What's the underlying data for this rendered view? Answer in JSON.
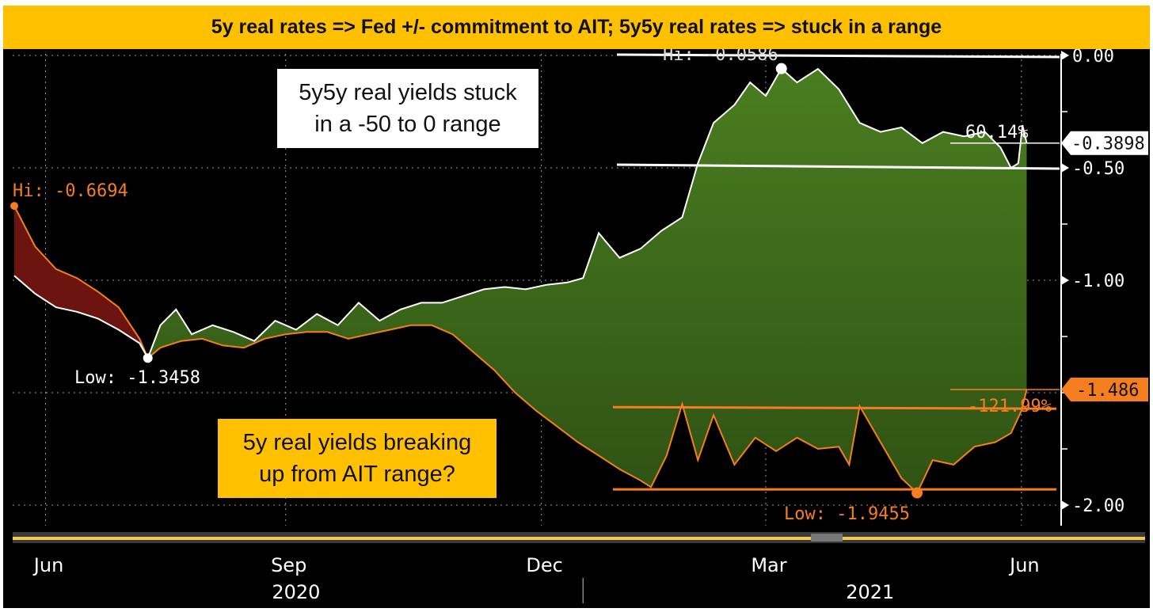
{
  "header": {
    "title": "5y real rates => Fed +/- commitment to AIT; 5y5y real rates => stuck in a range"
  },
  "annotations": {
    "box_5y5y": "5y5y real yields stuck\nin a -50 to 0 range",
    "box_5y": "5y real yields breaking\nup from AIT range?"
  },
  "chart_data": {
    "type": "area",
    "title": "5y real rates => Fed +/- commitment to AIT; 5y5y real rates => stuck in a range",
    "ylim": [
      -2.1,
      0.05
    ],
    "y_ticks": [
      {
        "value": 0.0,
        "label": "0.00"
      },
      {
        "value": -0.5,
        "label": "-0.50"
      },
      {
        "value": -1.0,
        "label": "-1.00"
      },
      {
        "value": -2.0,
        "label": "-2.00"
      }
    ],
    "x_ticks": [
      {
        "t": 0.03,
        "label": "Jun"
      },
      {
        "t": 0.26,
        "label": "Sep"
      },
      {
        "t": 0.505,
        "label": "Dec"
      },
      {
        "t": 0.72,
        "label": "Mar"
      },
      {
        "t": 0.965,
        "label": "Jun"
      }
    ],
    "x_years": [
      {
        "t": 0.27,
        "label": "2020"
      },
      {
        "t": 0.82,
        "label": "2021"
      }
    ],
    "year_divider_t": 0.545,
    "series": [
      {
        "name": "5y5y real yield",
        "color": "#ffffff",
        "points": [
          [
            0.0,
            -0.98
          ],
          [
            0.02,
            -1.06
          ],
          [
            0.04,
            -1.12
          ],
          [
            0.06,
            -1.14
          ],
          [
            0.08,
            -1.17
          ],
          [
            0.1,
            -1.22
          ],
          [
            0.12,
            -1.28
          ],
          [
            0.128,
            -1.3458
          ],
          [
            0.14,
            -1.2
          ],
          [
            0.155,
            -1.13
          ],
          [
            0.17,
            -1.24
          ],
          [
            0.19,
            -1.2
          ],
          [
            0.21,
            -1.23
          ],
          [
            0.23,
            -1.27
          ],
          [
            0.25,
            -1.18
          ],
          [
            0.27,
            -1.22
          ],
          [
            0.29,
            -1.15
          ],
          [
            0.31,
            -1.2
          ],
          [
            0.33,
            -1.1
          ],
          [
            0.35,
            -1.18
          ],
          [
            0.37,
            -1.13
          ],
          [
            0.39,
            -1.1
          ],
          [
            0.41,
            -1.1
          ],
          [
            0.43,
            -1.07
          ],
          [
            0.45,
            -1.04
          ],
          [
            0.47,
            -1.03
          ],
          [
            0.49,
            -1.04
          ],
          [
            0.51,
            -1.02
          ],
          [
            0.53,
            -1.01
          ],
          [
            0.545,
            -0.99
          ],
          [
            0.56,
            -0.79
          ],
          [
            0.58,
            -0.9
          ],
          [
            0.6,
            -0.86
          ],
          [
            0.62,
            -0.78
          ],
          [
            0.64,
            -0.72
          ],
          [
            0.655,
            -0.48
          ],
          [
            0.67,
            -0.3
          ],
          [
            0.69,
            -0.22
          ],
          [
            0.705,
            -0.12
          ],
          [
            0.72,
            -0.18
          ],
          [
            0.735,
            -0.0586
          ],
          [
            0.75,
            -0.12
          ],
          [
            0.77,
            -0.06
          ],
          [
            0.79,
            -0.15
          ],
          [
            0.81,
            -0.3
          ],
          [
            0.83,
            -0.34
          ],
          [
            0.85,
            -0.32
          ],
          [
            0.87,
            -0.39
          ],
          [
            0.89,
            -0.34
          ],
          [
            0.91,
            -0.36
          ],
          [
            0.93,
            -0.34
          ],
          [
            0.945,
            -0.41
          ],
          [
            0.955,
            -0.5
          ],
          [
            0.962,
            -0.48
          ],
          [
            0.966,
            -0.31
          ],
          [
            0.97,
            -0.3898
          ]
        ]
      },
      {
        "name": "5y real yield",
        "color": "#f47e20",
        "points": [
          [
            0.0,
            -0.6694
          ],
          [
            0.02,
            -0.85
          ],
          [
            0.04,
            -0.95
          ],
          [
            0.06,
            -0.99
          ],
          [
            0.08,
            -1.05
          ],
          [
            0.1,
            -1.12
          ],
          [
            0.12,
            -1.26
          ],
          [
            0.128,
            -1.3458
          ],
          [
            0.14,
            -1.3
          ],
          [
            0.16,
            -1.27
          ],
          [
            0.18,
            -1.26
          ],
          [
            0.2,
            -1.29
          ],
          [
            0.22,
            -1.3
          ],
          [
            0.24,
            -1.26
          ],
          [
            0.26,
            -1.24
          ],
          [
            0.28,
            -1.23
          ],
          [
            0.3,
            -1.23
          ],
          [
            0.32,
            -1.26
          ],
          [
            0.34,
            -1.24
          ],
          [
            0.36,
            -1.22
          ],
          [
            0.38,
            -1.2
          ],
          [
            0.4,
            -1.2
          ],
          [
            0.42,
            -1.24
          ],
          [
            0.44,
            -1.32
          ],
          [
            0.46,
            -1.4
          ],
          [
            0.48,
            -1.5
          ],
          [
            0.5,
            -1.58
          ],
          [
            0.52,
            -1.65
          ],
          [
            0.54,
            -1.72
          ],
          [
            0.56,
            -1.78
          ],
          [
            0.58,
            -1.84
          ],
          [
            0.6,
            -1.89
          ],
          [
            0.61,
            -1.92
          ],
          [
            0.625,
            -1.78
          ],
          [
            0.64,
            -1.55
          ],
          [
            0.655,
            -1.8
          ],
          [
            0.67,
            -1.6
          ],
          [
            0.69,
            -1.82
          ],
          [
            0.71,
            -1.7
          ],
          [
            0.73,
            -1.76
          ],
          [
            0.75,
            -1.7
          ],
          [
            0.77,
            -1.75
          ],
          [
            0.79,
            -1.74
          ],
          [
            0.8,
            -1.82
          ],
          [
            0.81,
            -1.56
          ],
          [
            0.83,
            -1.72
          ],
          [
            0.85,
            -1.88
          ],
          [
            0.865,
            -1.9455
          ],
          [
            0.88,
            -1.8
          ],
          [
            0.9,
            -1.82
          ],
          [
            0.92,
            -1.74
          ],
          [
            0.94,
            -1.72
          ],
          [
            0.955,
            -1.68
          ],
          [
            0.965,
            -1.58
          ],
          [
            0.97,
            -1.486
          ]
        ]
      }
    ],
    "labels": {
      "hi_5y": "Hi: -0.6694",
      "low_5y5y": "Low: -1.3458",
      "hi_5y5y": "Hi: -0.0586",
      "low_5y": "Low: -1.9455",
      "pct_5y5y": "60.14%",
      "pct_5y": "-121.99%",
      "last_5y5y": "-0.3898",
      "last_5y": "-1.486"
    },
    "range_lines": {
      "white": [
        0.0,
        -0.5
      ],
      "orange": [
        -1.55,
        -1.93
      ]
    },
    "colors": {
      "gain": "#3e6b1c",
      "loss": "#6b1410",
      "white_line": "#ffffff",
      "orange_line": "#f47e20",
      "grid": "#9a9a9a"
    }
  }
}
